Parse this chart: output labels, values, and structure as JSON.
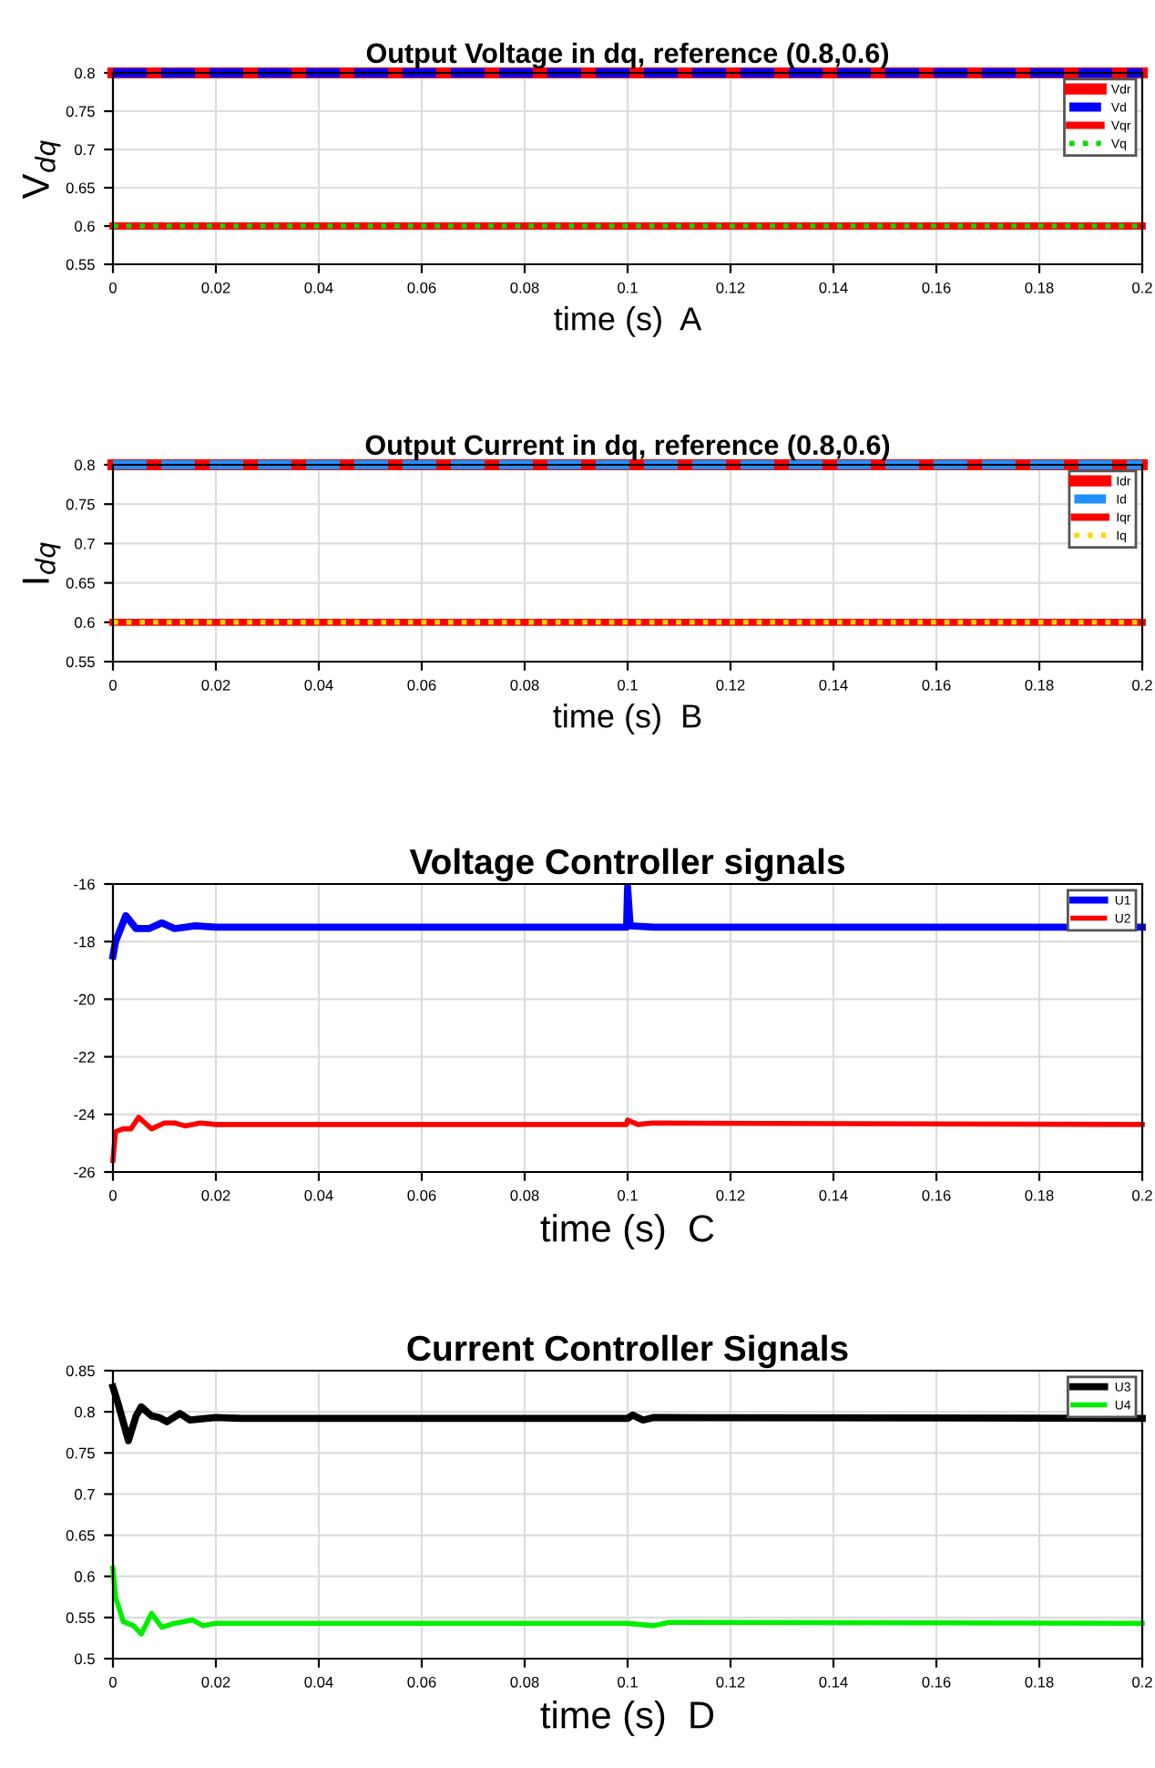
{
  "chart_data": [
    {
      "type": "line",
      "title": "Output Voltage in dq, reference (0.8,0.6)",
      "xlabel": "time (s)  A",
      "ylabel": "V$_{dq}$",
      "xlim": [
        0,
        0.2
      ],
      "xticks": [
        0,
        0.02,
        0.04,
        0.06,
        0.08,
        0.1,
        0.12,
        0.14,
        0.16,
        0.18,
        0.2
      ],
      "ylim": [
        0.55,
        0.8
      ],
      "yticks": [
        0.55,
        0.6,
        0.65,
        0.7,
        0.75,
        0.8
      ],
      "grid": true,
      "legend": "top right",
      "series": [
        {
          "name": "Vdr",
          "color": "#ff0000",
          "line_style": "solid",
          "x": [
            0,
            0.2
          ],
          "values": [
            0.8,
            0.8
          ]
        },
        {
          "name": "Vd",
          "color": "#0000ff",
          "line_style": "dashed",
          "x": [
            0,
            0.2
          ],
          "values": [
            0.8,
            0.8
          ]
        },
        {
          "name": "Vqr",
          "color": "#ff0000",
          "line_style": "solid",
          "x": [
            0,
            0.2
          ],
          "values": [
            0.6,
            0.6
          ]
        },
        {
          "name": "Vq",
          "color": "#00dd00",
          "line_style": "dotted",
          "x": [
            0,
            0.2
          ],
          "values": [
            0.6,
            0.6
          ]
        }
      ]
    },
    {
      "type": "line",
      "title": "Output Current in dq, reference (0.8,0.6)",
      "xlabel": "time (s)  B",
      "ylabel": "I$_{dq}$",
      "xlim": [
        0,
        0.2
      ],
      "xticks": [
        0,
        0.02,
        0.04,
        0.06,
        0.08,
        0.1,
        0.12,
        0.14,
        0.16,
        0.18,
        0.2
      ],
      "ylim": [
        0.55,
        0.8
      ],
      "yticks": [
        0.55,
        0.6,
        0.65,
        0.7,
        0.75,
        0.8
      ],
      "grid": true,
      "legend": "top right",
      "series": [
        {
          "name": "Idr",
          "color": "#ff0000",
          "line_style": "solid",
          "x": [
            0,
            0.2
          ],
          "values": [
            0.8,
            0.8
          ]
        },
        {
          "name": "Id",
          "color": "#1e90ff",
          "line_style": "dashed",
          "x": [
            0,
            0.2
          ],
          "values": [
            0.8,
            0.8
          ]
        },
        {
          "name": "Iqr",
          "color": "#ff0000",
          "line_style": "solid",
          "x": [
            0,
            0.2
          ],
          "values": [
            0.6,
            0.6
          ]
        },
        {
          "name": "Iq",
          "color": "#ffd700",
          "line_style": "dotted",
          "x": [
            0,
            0.2
          ],
          "values": [
            0.6,
            0.6
          ]
        }
      ]
    },
    {
      "type": "line",
      "title": "Voltage Controller signals",
      "xlabel": "time (s)  C",
      "xlim": [
        0,
        0.2
      ],
      "xticks": [
        0,
        0.02,
        0.04,
        0.06,
        0.08,
        0.1,
        0.12,
        0.14,
        0.16,
        0.18,
        0.2
      ],
      "ylim": [
        -26,
        -16
      ],
      "yticks": [
        -26,
        -24,
        -22,
        -20,
        -18,
        -16
      ],
      "grid": true,
      "legend": "top right",
      "series": [
        {
          "name": "U1",
          "color": "#0000ff",
          "line_style": "solid",
          "x": [
            0,
            0.0005,
            0.0025,
            0.0045,
            0.007,
            0.0095,
            0.012,
            0.016,
            0.02,
            0.0998,
            0.1,
            0.1005,
            0.105,
            0.2
          ],
          "values": [
            -18.5,
            -18,
            -17.1,
            -17.55,
            -17.55,
            -17.35,
            -17.55,
            -17.45,
            -17.5,
            -17.5,
            -16.1,
            -17.45,
            -17.5,
            -17.5
          ]
        },
        {
          "name": "U2",
          "color": "#ff0000",
          "line_style": "solid",
          "x": [
            0,
            0.0005,
            0.002,
            0.0035,
            0.005,
            0.0075,
            0.01,
            0.012,
            0.014,
            0.017,
            0.02,
            0.0998,
            0.1,
            0.102,
            0.105,
            0.2
          ],
          "values": [
            -25.6,
            -24.6,
            -24.5,
            -24.5,
            -24.1,
            -24.5,
            -24.3,
            -24.3,
            -24.4,
            -24.3,
            -24.35,
            -24.35,
            -24.2,
            -24.35,
            -24.3,
            -24.35
          ]
        }
      ]
    },
    {
      "type": "line",
      "title": "Current Controller Signals",
      "xlabel": "time (s)  D",
      "xlim": [
        0,
        0.2
      ],
      "xticks": [
        0,
        0.02,
        0.04,
        0.06,
        0.08,
        0.1,
        0.12,
        0.14,
        0.16,
        0.18,
        0.2
      ],
      "ylim": [
        0.5,
        0.85
      ],
      "yticks": [
        0.5,
        0.55,
        0.6,
        0.65,
        0.7,
        0.75,
        0.8,
        0.85
      ],
      "grid": true,
      "legend": "top right",
      "series": [
        {
          "name": "U3",
          "color": "#000000",
          "line_style": "solid",
          "x": [
            0,
            0.001,
            0.003,
            0.0045,
            0.0055,
            0.0075,
            0.009,
            0.0105,
            0.013,
            0.015,
            0.02,
            0.025,
            0.1,
            0.101,
            0.103,
            0.105,
            0.2
          ],
          "values": [
            0.83,
            0.81,
            0.765,
            0.795,
            0.806,
            0.795,
            0.793,
            0.788,
            0.798,
            0.79,
            0.793,
            0.792,
            0.792,
            0.796,
            0.79,
            0.793,
            0.792
          ]
        },
        {
          "name": "U4",
          "color": "#00ee00",
          "line_style": "solid",
          "x": [
            0,
            0.0005,
            0.002,
            0.004,
            0.0055,
            0.0075,
            0.0095,
            0.012,
            0.0155,
            0.0175,
            0.02,
            0.1,
            0.105,
            0.108,
            0.2
          ],
          "values": [
            0.61,
            0.575,
            0.545,
            0.54,
            0.53,
            0.555,
            0.538,
            0.543,
            0.547,
            0.54,
            0.543,
            0.543,
            0.54,
            0.544,
            0.543
          ]
        }
      ]
    }
  ]
}
